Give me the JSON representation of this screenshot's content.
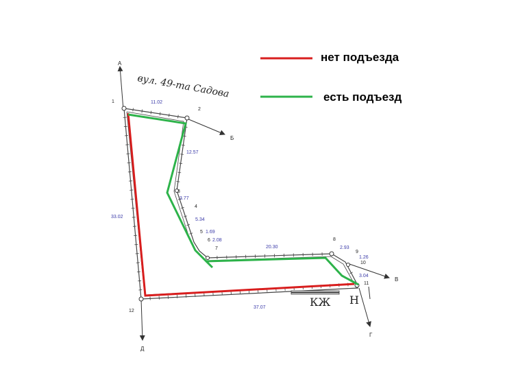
{
  "legend": {
    "no_access_label": "нет подъезда",
    "no_access_color": "#d81e1e",
    "has_access_label": "есть подъезд",
    "has_access_color": "#2db34a"
  },
  "street_name": "вул. 49-та Садова",
  "directions": {
    "a": "А",
    "b": "Б",
    "v": "В",
    "g": "Г",
    "d": "Д"
  },
  "points": [
    "1",
    "2",
    "3",
    "4",
    "5",
    "6",
    "7",
    "8",
    "9",
    "10",
    "11",
    "12"
  ],
  "dimensions": {
    "d1_2": "11.02",
    "d2_3": "12.57",
    "d3_4": "3.77",
    "d4_5": "5.34",
    "d5_6": "1.69",
    "d6_7": "2.08",
    "d7_8": "20.30",
    "d8_9": "2.93",
    "d9_10": "1.26",
    "d10_11": "3.04",
    "d11_12": "37.07",
    "d12_1": "33.02"
  },
  "kzh_label": "КЖ",
  "n_label": "Н"
}
